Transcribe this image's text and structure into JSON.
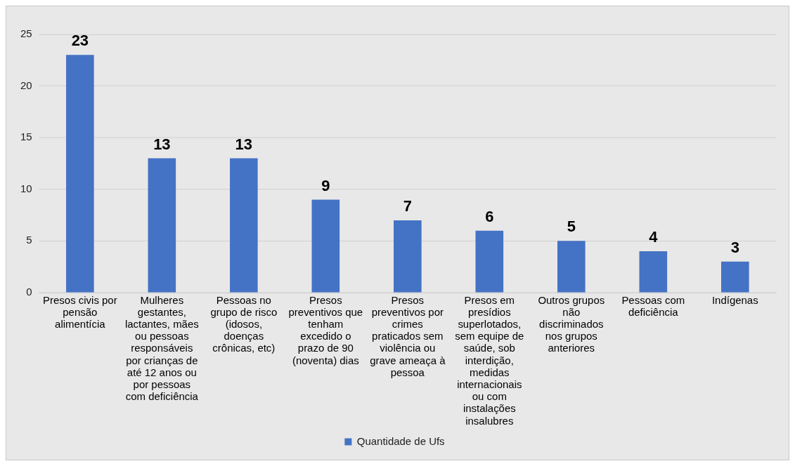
{
  "chart_data": {
    "type": "bar",
    "categories": [
      "Presos civis por pensão alimentícia",
      "Mulheres gestantes, lactantes, mães ou pessoas responsáveis por crianças de até 12 anos ou por pessoas com deficiência",
      "Pessoas no grupo de risco (idosos, doenças crônicas, etc)",
      "Presos preventivos que tenham excedido o prazo de 90 (noventa) dias",
      "Presos preventivos por crimes praticados sem violência ou grave ameaça à pessoa",
      "Presos em presídios superlotados, sem equipe de saúde, sob interdição, medidas internacionais ou com instalações insalubres",
      "Outros grupos não discriminados nos grupos anteriores",
      "Pessoas com deficiência",
      "Indígenas"
    ],
    "series": [
      {
        "name": "Quantidade de Ufs",
        "color": "#4472c4",
        "values": [
          23,
          13,
          13,
          9,
          7,
          6,
          5,
          4,
          3
        ]
      }
    ],
    "ylim": [
      0,
      25
    ],
    "yticks": [
      0,
      5,
      10,
      15,
      20,
      25
    ],
    "grid": "y",
    "legend": "bottom",
    "data_labels": true
  }
}
